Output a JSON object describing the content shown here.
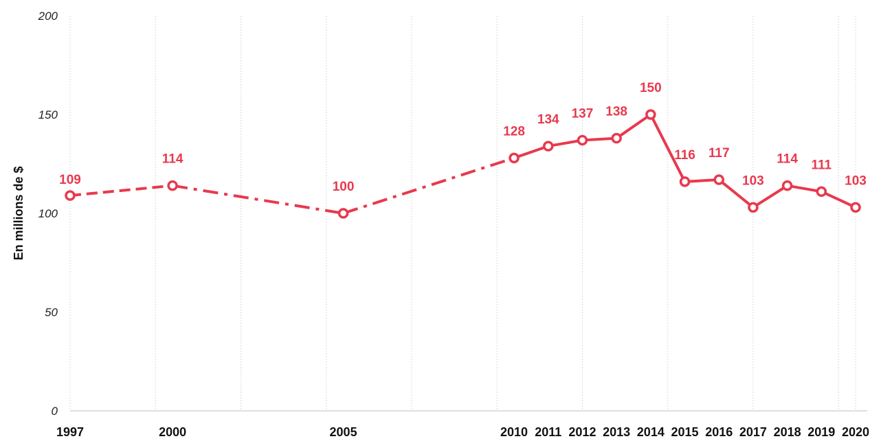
{
  "chart_data": {
    "type": "line",
    "title": "",
    "xlabel": "",
    "ylabel": "En millions de $",
    "ylim": [
      0,
      200
    ],
    "yticks": [
      0,
      50,
      100,
      150,
      200
    ],
    "grid": "vertical",
    "categories": [
      "1997",
      "2000",
      "2005",
      "2010",
      "2011",
      "2012",
      "2013",
      "2014",
      "2015",
      "2016",
      "2017",
      "2018",
      "2019",
      "2020"
    ],
    "x": [
      1997,
      2000,
      2005,
      2010,
      2011,
      2012,
      2013,
      2014,
      2015,
      2016,
      2017,
      2018,
      2019,
      2020
    ],
    "series": [
      {
        "color": "#e8394d",
        "values": [
          109,
          114,
          100,
          128,
          134,
          137,
          138,
          150,
          116,
          117,
          103,
          114,
          111,
          103
        ],
        "labels": [
          "109",
          "114",
          "100",
          "128",
          "134",
          "137",
          "138",
          "150",
          "116",
          "117",
          "103",
          "114",
          "111",
          "103"
        ],
        "segment_styles": [
          "dashed",
          "dash-dot",
          "dash-dot",
          "solid",
          "solid",
          "solid",
          "solid",
          "solid",
          "solid",
          "solid",
          "solid",
          "solid",
          "solid"
        ]
      }
    ]
  }
}
